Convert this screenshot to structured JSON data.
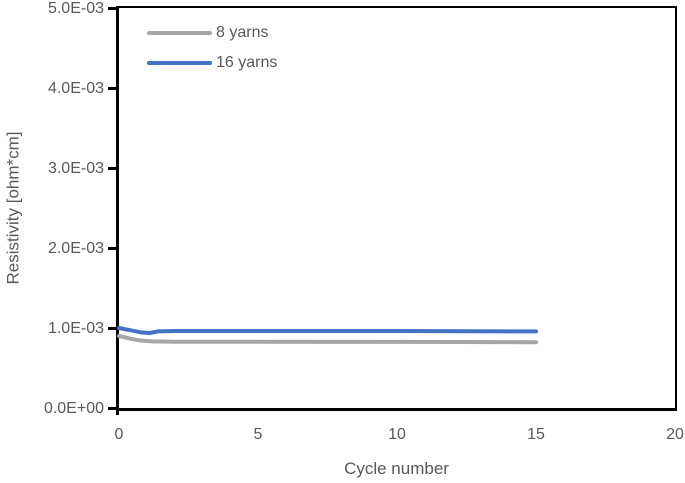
{
  "colors": {
    "background": "#FFFFFF",
    "axis": "#000000",
    "text": "#595959",
    "series_gray": "#A6A6A6",
    "series_blue": "#4472C4"
  },
  "chart_data": {
    "type": "line",
    "title": "",
    "xlabel": "Cycle number",
    "ylabel": "Resistivity [ohm*cm]",
    "xlim": [
      0,
      20
    ],
    "ylim": [
      0,
      0.005
    ],
    "grid": false,
    "legend_position": "top-left inside plot area",
    "x_ticks": [
      {
        "value": 0,
        "label": "0"
      },
      {
        "value": 5,
        "label": "5"
      },
      {
        "value": 10,
        "label": "10"
      },
      {
        "value": 15,
        "label": "15"
      },
      {
        "value": 20,
        "label": "20"
      }
    ],
    "y_ticks": [
      {
        "value": 0,
        "label": "0.0E+00"
      },
      {
        "value": 0.001,
        "label": "1.0E-03"
      },
      {
        "value": 0.002,
        "label": "2.0E-03"
      },
      {
        "value": 0.003,
        "label": "3.0E-03"
      },
      {
        "value": 0.004,
        "label": "4.0E-03"
      },
      {
        "value": 0.005,
        "label": "5.0E-03"
      }
    ],
    "series": [
      {
        "name": "8 yarns",
        "color": "#A6A6A6",
        "line_width": 4,
        "points": [
          [
            0,
            0.0009
          ],
          [
            0.4,
            0.000868
          ],
          [
            0.8,
            0.000843
          ],
          [
            1.2,
            0.000832
          ],
          [
            2,
            0.000828
          ],
          [
            5,
            0.000827
          ],
          [
            10,
            0.000826
          ],
          [
            15,
            0.000822
          ]
        ]
      },
      {
        "name": "16 yarns",
        "color": "#4472C4",
        "line_width": 4,
        "points": [
          [
            0,
            0.001
          ],
          [
            0.4,
            0.000972
          ],
          [
            0.8,
            0.000945
          ],
          [
            1.1,
            0.000938
          ],
          [
            1.4,
            0.000958
          ],
          [
            2,
            0.000962
          ],
          [
            5,
            0.000963
          ],
          [
            10,
            0.000962
          ],
          [
            15,
            0.000957
          ]
        ]
      }
    ]
  }
}
